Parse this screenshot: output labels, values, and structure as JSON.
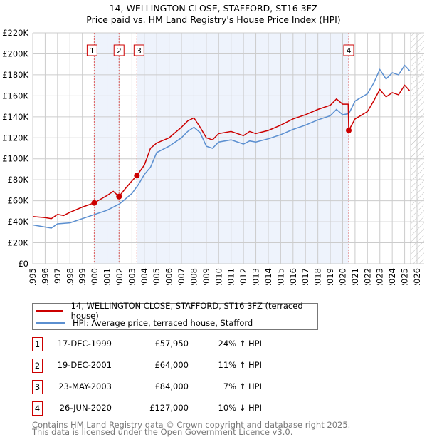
{
  "chart_data": {
    "type": "line",
    "title": "14, WELLINGTON CLOSE, STAFFORD, ST16 3FZ",
    "subtitle": "Price paid vs. HM Land Registry's House Price Index (HPI)",
    "xlim": [
      1995,
      2026
    ],
    "ylim": [
      0,
      220000
    ],
    "x_ticks": [
      "1995",
      "1996",
      "1997",
      "1998",
      "1999",
      "2000",
      "2001",
      "2002",
      "2003",
      "2004",
      "2005",
      "2006",
      "2007",
      "2008",
      "2009",
      "2010",
      "2011",
      "2012",
      "2013",
      "2014",
      "2015",
      "2016",
      "2017",
      "2018",
      "2019",
      "2020",
      "2021",
      "2022",
      "2023",
      "2024",
      "2025",
      "2026"
    ],
    "y_ticks": [
      {
        "v": 0,
        "l": "£0"
      },
      {
        "v": 20000,
        "l": "£20K"
      },
      {
        "v": 40000,
        "l": "£40K"
      },
      {
        "v": 60000,
        "l": "£60K"
      },
      {
        "v": 80000,
        "l": "£80K"
      },
      {
        "v": 100000,
        "l": "£100K"
      },
      {
        "v": 120000,
        "l": "£120K"
      },
      {
        "v": 140000,
        "l": "£140K"
      },
      {
        "v": 160000,
        "l": "£160K"
      },
      {
        "v": 180000,
        "l": "£180K"
      },
      {
        "v": 200000,
        "l": "£200K"
      },
      {
        "v": 220000,
        "l": "£220K"
      }
    ],
    "grid": true,
    "series": [
      {
        "name": "14, WELLINGTON CLOSE, STAFFORD, ST16 3FZ (terraced house)",
        "color": "#cc0000",
        "x": [
          1995,
          1996,
          1996.5,
          1997,
          1997.5,
          1998,
          1999,
          1999.96,
          2001,
          2001.5,
          2001.96,
          2002.5,
          2003,
          2003.4,
          2004,
          2004.5,
          2005,
          2006,
          2007,
          2007.5,
          2008,
          2008.5,
          2009,
          2009.5,
          2010,
          2011,
          2012,
          2012.5,
          2013,
          2014,
          2015,
          2016,
          2017,
          2018,
          2019,
          2019.5,
          2020,
          2020.45,
          2020.49,
          2021,
          2022,
          2022.5,
          2023,
          2023.5,
          2024,
          2024.5,
          2025,
          2025.4
        ],
        "y": [
          45000,
          44000,
          43000,
          47000,
          46000,
          49000,
          54000,
          58000,
          65000,
          69000,
          64000,
          72000,
          79000,
          84000,
          94000,
          110000,
          115000,
          120000,
          130000,
          136000,
          139000,
          130000,
          120000,
          118000,
          124000,
          126000,
          122000,
          126000,
          124000,
          127000,
          132000,
          138000,
          142000,
          147000,
          151000,
          157000,
          152000,
          152000,
          127000,
          138000,
          145000,
          155000,
          166000,
          159000,
          163000,
          161000,
          170000,
          165000
        ]
      },
      {
        "name": "HPI: Average price, terraced house, Stafford",
        "color": "#5b8fd0",
        "x": [
          1995,
          1996,
          1996.5,
          1997,
          1998,
          1999,
          2000,
          2001,
          2002,
          2003,
          2003.5,
          2004,
          2004.5,
          2005,
          2006,
          2007,
          2007.5,
          2008,
          2008.5,
          2009,
          2009.5,
          2010,
          2011,
          2012,
          2012.5,
          2013,
          2014,
          2015,
          2016,
          2017,
          2018,
          2019,
          2019.5,
          2020,
          2020.5,
          2021,
          2022,
          2022.5,
          2023,
          2023.5,
          2024,
          2024.5,
          2025,
          2025.4
        ],
        "y": [
          37000,
          35000,
          34000,
          38000,
          39000,
          43000,
          47000,
          51000,
          57000,
          67000,
          75000,
          85000,
          92000,
          106000,
          112000,
          120000,
          126000,
          130000,
          125000,
          112000,
          110000,
          116000,
          118000,
          114000,
          117000,
          116000,
          119000,
          123000,
          128000,
          132000,
          137000,
          141000,
          147000,
          142000,
          143000,
          155000,
          162000,
          172000,
          185000,
          176000,
          182000,
          180000,
          189000,
          184000
        ]
      }
    ],
    "sales": [
      {
        "n": "1",
        "x": 1999.96,
        "y": 57950,
        "date": "17-DEC-1999",
        "price": "£57,950",
        "hpi": "24% ↑ HPI"
      },
      {
        "n": "2",
        "x": 2001.96,
        "y": 64000,
        "date": "19-DEC-2001",
        "price": "£64,000",
        "hpi": "11% ↑ HPI"
      },
      {
        "n": "3",
        "x": 2003.4,
        "y": 84000,
        "date": "23-MAY-2003",
        "price": "£84,000",
        "hpi": "7% ↑ HPI"
      },
      {
        "n": "4",
        "x": 2020.49,
        "y": 127000,
        "date": "26-JUN-2020",
        "price": "£127,000",
        "hpi": "10% ↓ HPI"
      }
    ],
    "forecast_from": 2025.5
  },
  "footer": {
    "line1": "Contains HM Land Registry data © Crown copyright and database right 2025.",
    "line2": "This data is licensed under the Open Government Licence v3.0."
  }
}
